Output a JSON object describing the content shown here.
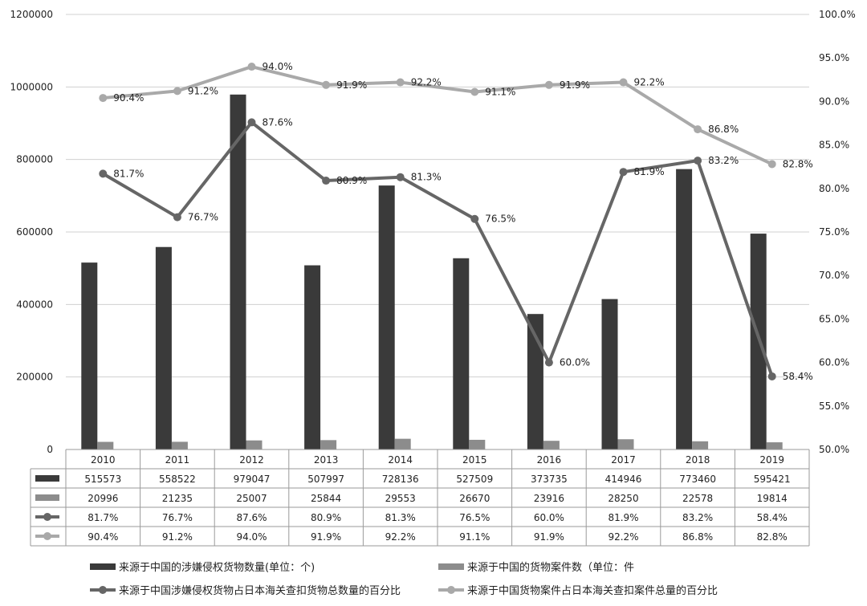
{
  "chart_data": {
    "type": "bar",
    "categories": [
      "2010",
      "2011",
      "2012",
      "2013",
      "2014",
      "2015",
      "2016",
      "2017",
      "2018",
      "2019"
    ],
    "y_left_lim": [
      0,
      1200000
    ],
    "y_left_ticks": [
      "0",
      "200000",
      "400000",
      "600000",
      "800000",
      "1000000",
      "1200000"
    ],
    "y_right_lim": [
      50,
      100
    ],
    "y_right_ticks": [
      "50.0%",
      "55.0%",
      "60.0%",
      "65.0%",
      "70.0%",
      "75.0%",
      "80.0%",
      "85.0%",
      "90.0%",
      "95.0%",
      "100.0%"
    ],
    "grid": true,
    "legend_position": "bottom",
    "series": [
      {
        "name": "来源于中国的涉嫌侵权货物数量(单位：个)",
        "type": "bar",
        "axis": "left",
        "color": "#3a3a3a",
        "values": [
          515573,
          558522,
          979047,
          507997,
          728136,
          527509,
          373735,
          414946,
          773460,
          595421
        ],
        "labels": [
          "515573",
          "558522",
          "979047",
          "507997",
          "728136",
          "527509",
          "373735",
          "414946",
          "773460",
          "595421"
        ]
      },
      {
        "name": "来源于中国的货物案件数（单位：件",
        "type": "bar",
        "axis": "left",
        "color": "#8c8c8c",
        "values": [
          20996,
          21235,
          25007,
          25844,
          29553,
          26670,
          23916,
          28250,
          22578,
          19814
        ],
        "labels": [
          "20996",
          "21235",
          "25007",
          "25844",
          "29553",
          "26670",
          "23916",
          "28250",
          "22578",
          "19814"
        ]
      },
      {
        "name": "来源于中国涉嫌侵权货物占日本海关查扣货物总数量的百分比",
        "type": "line",
        "axis": "right",
        "color": "#666666",
        "values": [
          81.7,
          76.7,
          87.6,
          80.9,
          81.3,
          76.5,
          60.0,
          81.9,
          83.2,
          58.4
        ],
        "labels": [
          "81.7%",
          "76.7%",
          "87.6%",
          "80.9%",
          "81.3%",
          "76.5%",
          "60.0%",
          "81.9%",
          "83.2%",
          "58.4%"
        ]
      },
      {
        "name": "来源于中国货物案件占日本海关查扣案件总量的百分比",
        "type": "line",
        "axis": "right",
        "color": "#a9a9a9",
        "values": [
          90.4,
          91.2,
          94.0,
          91.9,
          92.2,
          91.1,
          91.9,
          92.2,
          86.8,
          82.8
        ],
        "labels": [
          "90.4%",
          "91.2%",
          "94.0%",
          "91.9%",
          "92.2%",
          "91.1%",
          "91.9%",
          "92.2%",
          "86.8%",
          "82.8%"
        ]
      }
    ]
  }
}
